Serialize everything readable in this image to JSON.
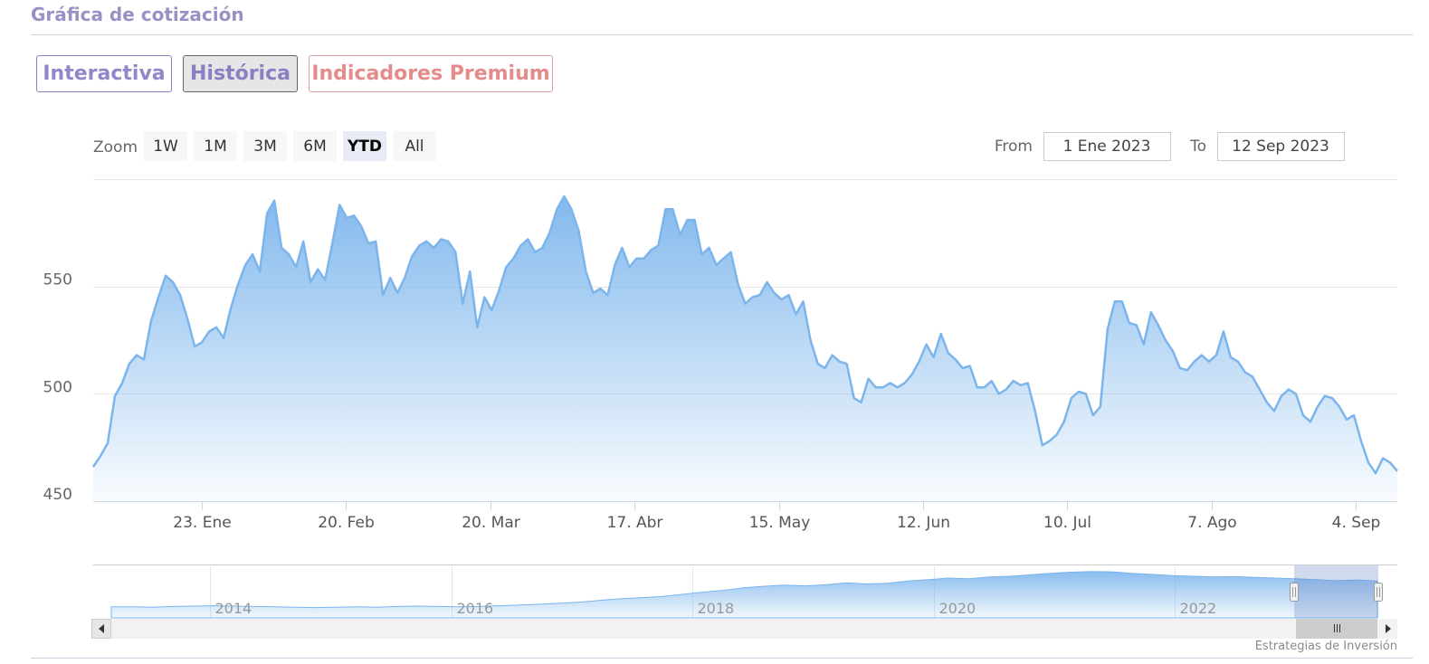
{
  "header": {
    "title": "Gráfica de cotización"
  },
  "tabs": [
    {
      "label": "Interactiva"
    },
    {
      "label": "Histórica"
    },
    {
      "label": "Indicadores Premium"
    }
  ],
  "range_selector": {
    "zoom_label": "Zoom",
    "buttons": [
      "1W",
      "1M",
      "3M",
      "6M",
      "YTD",
      "All"
    ],
    "selected": "YTD",
    "from_label": "From",
    "from_value": "1 Ene 2023",
    "to_label": "To",
    "to_value": "12 Sep 2023"
  },
  "credit": "Estrategias de Inversión",
  "colors": {
    "line": "#7cb5ec",
    "accent_purple": "#9b8fc4",
    "accent_red": "#e58b8b"
  },
  "chart_data": {
    "type": "area",
    "title": "",
    "xlabel": "",
    "ylabel": "",
    "x_start": "2023-01-02",
    "x_end": "2023-09-12",
    "ylim": [
      450,
      600
    ],
    "yticks": [
      450,
      500,
      550
    ],
    "xticks": [
      {
        "label": "23. Ene",
        "date": "2023-01-23"
      },
      {
        "label": "20. Feb",
        "date": "2023-02-20"
      },
      {
        "label": "20. Mar",
        "date": "2023-03-20"
      },
      {
        "label": "17. Abr",
        "date": "2023-04-17"
      },
      {
        "label": "15. May",
        "date": "2023-05-15"
      },
      {
        "label": "12. Jun",
        "date": "2023-06-12"
      },
      {
        "label": "10. Jul",
        "date": "2023-07-10"
      },
      {
        "label": "7. Ago",
        "date": "2023-08-07"
      },
      {
        "label": "4. Sep",
        "date": "2023-09-04"
      }
    ],
    "series": [
      {
        "values": [
          466,
          471,
          477,
          499,
          505,
          514,
          518,
          516,
          534,
          545,
          555,
          552,
          546,
          535,
          522,
          524,
          529,
          531,
          526,
          540,
          551,
          560,
          565,
          557,
          584,
          590,
          568,
          565,
          559,
          571,
          552,
          558,
          553,
          570,
          588,
          582,
          583,
          578,
          570,
          571,
          546,
          554,
          547,
          554,
          564,
          569,
          571,
          568,
          572,
          571,
          566,
          542,
          557,
          531,
          545,
          539,
          548,
          559,
          563,
          569,
          572,
          566,
          568,
          575,
          586,
          592,
          586,
          576,
          557,
          547,
          549,
          546,
          560,
          568,
          559,
          563,
          563,
          567,
          569,
          586,
          586,
          574,
          581,
          581,
          565,
          568,
          560,
          563,
          566,
          551,
          542,
          545,
          546,
          552,
          547,
          544,
          546,
          537,
          543,
          525,
          514,
          512,
          518,
          515,
          514,
          498,
          496,
          507,
          503,
          503,
          505,
          503,
          505,
          509,
          515,
          523,
          517,
          528,
          519,
          516,
          512,
          513,
          503,
          503,
          506,
          500,
          502,
          506,
          504,
          505,
          492,
          476,
          478,
          481,
          487,
          498,
          501,
          500,
          490,
          494,
          530,
          543,
          543,
          533,
          532,
          523,
          538,
          532,
          525,
          520,
          512,
          511,
          515,
          518,
          515,
          518,
          529,
          517,
          515,
          510,
          508,
          502,
          496,
          492,
          499,
          502,
          500,
          490,
          487,
          494,
          499,
          498,
          494,
          488,
          490,
          478,
          468,
          463,
          470,
          468,
          464
        ]
      }
    ],
    "navigator": {
      "years": [
        "2014",
        "2016",
        "2018",
        "2020",
        "2022"
      ],
      "values": [
        150,
        150,
        149,
        151,
        152,
        153,
        152,
        151,
        150,
        149,
        148,
        149,
        150,
        149,
        151,
        152,
        151,
        150,
        151,
        153,
        155,
        157,
        160,
        163,
        168,
        172,
        175,
        178,
        184,
        190,
        195,
        202,
        206,
        209,
        207,
        210,
        215,
        212,
        214,
        220,
        224,
        228,
        226,
        231,
        233,
        237,
        241,
        244,
        246,
        245,
        241,
        238,
        235,
        233,
        231,
        232,
        230,
        228,
        226,
        224,
        221,
        223,
        220
      ]
    }
  }
}
